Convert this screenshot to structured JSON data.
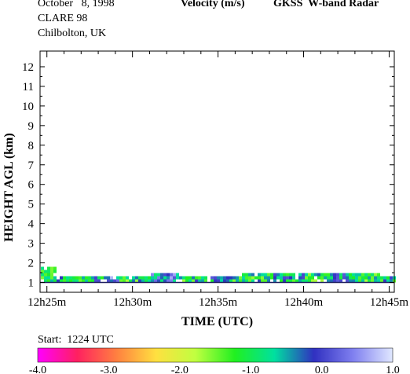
{
  "header": {
    "date": "October   8, 1998",
    "campaign": "CLARE 98",
    "location": "Chilbolton, UK",
    "quantity": "Velocity (m/s)",
    "instrument": "GKSS  W-band Radar"
  },
  "start_label": "Start:  1224 UTC",
  "chart_data": {
    "type": "heatmap",
    "title": "Velocity (m/s)",
    "xlabel": "TIME (UTC)",
    "ylabel": "HEIGHT AGL (km)",
    "x_ticks": [
      "12h25m",
      "12h30m",
      "12h35m",
      "12h40m",
      "12h45m"
    ],
    "x_tick_minutes": [
      25,
      30,
      35,
      40,
      45
    ],
    "xlim_minutes": [
      24.6,
      45.3
    ],
    "y_ticks": [
      1,
      2,
      3,
      4,
      5,
      6,
      7,
      8,
      9,
      10,
      11,
      12
    ],
    "ylim": [
      0.5,
      12.8
    ],
    "colorbar": {
      "ticks": [
        "-4.0",
        "-3.0",
        "-2.0",
        "-1.0",
        "0.0",
        "1.0"
      ],
      "range": [
        -4.0,
        1.0
      ],
      "colors": [
        "#ff00ff",
        "#ff2060",
        "#ff8040",
        "#ffe040",
        "#c0ff40",
        "#20f020",
        "#00e0a0",
        "#3030c0",
        "#8080f0",
        "#e0e8ff"
      ]
    },
    "echo_layer": {
      "base_km": 1.0,
      "top_km": [
        1.9,
        1.45,
        1.45,
        1.4,
        1.45,
        1.4,
        1.45,
        1.5,
        1.5,
        1.45,
        1.4,
        1.45,
        1.45,
        1.5,
        1.55,
        1.6,
        1.6,
        1.55,
        1.55,
        1.6,
        1.55,
        1.5,
        1.45
      ],
      "typical_velocity": [
        -1.2,
        -0.8,
        -1.1,
        -0.6,
        0.1,
        -1.0,
        -0.9,
        -0.3,
        0.0,
        -1.1,
        -0.7,
        -0.5,
        -0.9,
        -1.0,
        -0.8,
        -0.6,
        -0.7,
        -1.0,
        -0.9,
        -0.4,
        -0.8,
        -1.0,
        -0.7
      ]
    }
  }
}
